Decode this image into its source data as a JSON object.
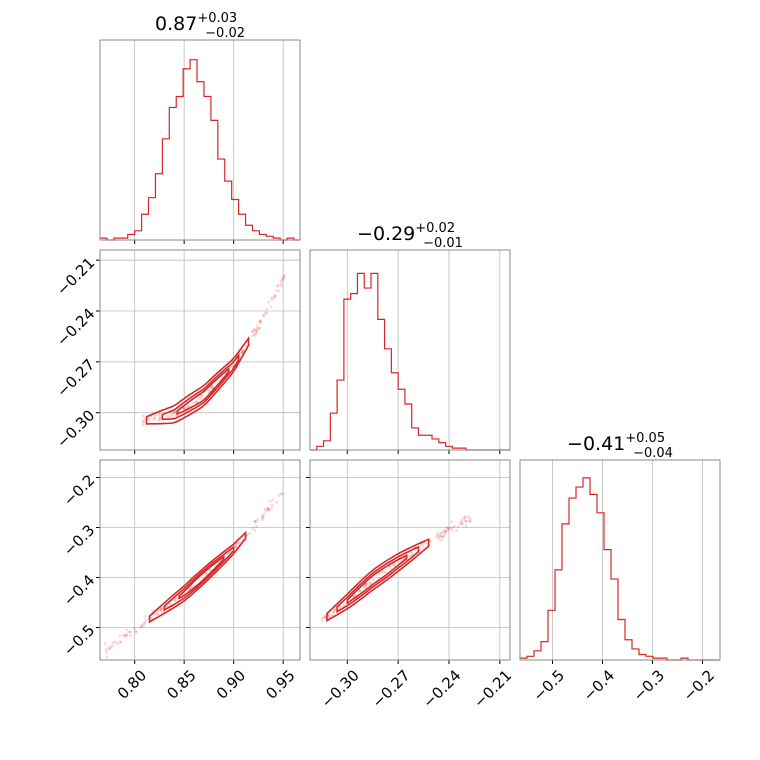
{
  "chart_data": {
    "type": "corner",
    "color": "#d62728",
    "parameters": [
      {
        "median": "0.87",
        "plus": "+0.03",
        "minus": "−0.02",
        "range": [
          0.765,
          0.967
        ],
        "ticks": [
          "0.80",
          "0.85",
          "0.90",
          "0.95"
        ],
        "tick_values": [
          0.8,
          0.85,
          0.9,
          0.95
        ]
      },
      {
        "median": "−0.29",
        "plus": "+0.02",
        "minus": "−0.01",
        "range": [
          -0.322,
          -0.204
        ],
        "ticks": [
          "−0.30",
          "−0.27",
          "−0.24",
          "−0.21"
        ],
        "tick_values": [
          -0.3,
          -0.27,
          -0.24,
          -0.21
        ]
      },
      {
        "median": "−0.41",
        "plus": "+0.05",
        "minus": "−0.04",
        "range": [
          -0.565,
          -0.165
        ],
        "ticks": [
          "−0.5",
          "−0.4",
          "−0.3",
          "−0.2"
        ],
        "tick_values": [
          -0.5,
          -0.4,
          -0.3,
          -0.2
        ]
      }
    ],
    "histograms": [
      {
        "bin_edges": [
          0.765,
          0.772,
          0.779,
          0.786,
          0.793,
          0.8,
          0.807,
          0.814,
          0.821,
          0.828,
          0.835,
          0.842,
          0.849,
          0.856,
          0.863,
          0.87,
          0.877,
          0.884,
          0.891,
          0.898,
          0.905,
          0.912,
          0.919,
          0.926,
          0.933,
          0.94,
          0.947,
          0.954,
          0.961,
          0.967
        ],
        "counts": [
          0.01,
          0.0,
          0.01,
          0.01,
          0.03,
          0.05,
          0.14,
          0.23,
          0.36,
          0.55,
          0.72,
          0.78,
          0.93,
          0.98,
          0.86,
          0.78,
          0.65,
          0.44,
          0.32,
          0.22,
          0.14,
          0.08,
          0.05,
          0.03,
          0.02,
          0.01,
          0.0,
          0.01,
          0.0
        ]
      },
      {
        "bin_edges": [
          -0.322,
          -0.318,
          -0.314,
          -0.31,
          -0.306,
          -0.302,
          -0.298,
          -0.294,
          -0.29,
          -0.286,
          -0.282,
          -0.278,
          -0.274,
          -0.27,
          -0.266,
          -0.262,
          -0.258,
          -0.254,
          -0.25,
          -0.246,
          -0.242,
          -0.238,
          -0.234,
          -0.23,
          -0.226,
          -0.222,
          -0.218,
          -0.214,
          -0.21,
          -0.204
        ],
        "counts": [
          0.0,
          0.02,
          0.05,
          0.2,
          0.38,
          0.82,
          0.85,
          0.96,
          0.88,
          0.96,
          0.71,
          0.55,
          0.42,
          0.33,
          0.25,
          0.12,
          0.08,
          0.08,
          0.06,
          0.04,
          0.02,
          0.01,
          0.01,
          0.0,
          0.0,
          0.0,
          0.0,
          0.0,
          0.0
        ]
      },
      {
        "bin_edges": [
          -0.565,
          -0.551,
          -0.537,
          -0.523,
          -0.509,
          -0.495,
          -0.481,
          -0.467,
          -0.453,
          -0.439,
          -0.425,
          -0.411,
          -0.397,
          -0.383,
          -0.369,
          -0.355,
          -0.341,
          -0.327,
          -0.313,
          -0.299,
          -0.285,
          -0.271,
          -0.257,
          -0.243,
          -0.229,
          -0.215,
          -0.201,
          -0.187,
          -0.173,
          -0.165
        ],
        "counts": [
          0.01,
          0.02,
          0.05,
          0.1,
          0.27,
          0.49,
          0.74,
          0.88,
          0.94,
          0.99,
          0.9,
          0.8,
          0.6,
          0.44,
          0.22,
          0.11,
          0.06,
          0.03,
          0.02,
          0.01,
          0.01,
          0.0,
          0.0,
          0.01,
          0.0,
          0.0,
          0.0,
          0.0,
          0.0
        ]
      }
    ],
    "pairs": [
      {
        "x_param": 0,
        "y_param": 1,
        "trend": [
          [
            0.808,
            -0.305
          ],
          [
            0.84,
            -0.301
          ],
          [
            0.87,
            -0.29
          ],
          [
            0.9,
            -0.272
          ],
          [
            0.925,
            -0.249
          ],
          [
            0.952,
            -0.218
          ]
        ],
        "contour_bands": [
          [
            0.812,
            0.915,
            0.006
          ],
          [
            0.828,
            0.905,
            0.004
          ],
          [
            0.843,
            0.895,
            0.0025
          ]
        ]
      },
      {
        "x_param": 0,
        "y_param": 2,
        "trend": [
          [
            0.77,
            -0.545
          ],
          [
            0.8,
            -0.505
          ],
          [
            0.85,
            -0.432
          ],
          [
            0.9,
            -0.343
          ],
          [
            0.95,
            -0.23
          ]
        ],
        "contour_bands": [
          [
            0.815,
            0.912,
            0.016
          ],
          [
            0.83,
            0.9,
            0.011
          ],
          [
            0.845,
            0.89,
            0.007
          ]
        ]
      },
      {
        "x_param": 1,
        "y_param": 2,
        "trend": [
          [
            -0.315,
            -0.487
          ],
          [
            -0.3,
            -0.448
          ],
          [
            -0.285,
            -0.405
          ],
          [
            -0.27,
            -0.37
          ],
          [
            -0.255,
            -0.337
          ],
          [
            -0.24,
            -0.305
          ],
          [
            -0.225,
            -0.275
          ]
        ],
        "contour_bands": [
          [
            -0.312,
            -0.252,
            0.02
          ],
          [
            -0.306,
            -0.258,
            0.014
          ],
          [
            -0.3,
            -0.265,
            0.009
          ]
        ]
      }
    ],
    "grid": true
  }
}
